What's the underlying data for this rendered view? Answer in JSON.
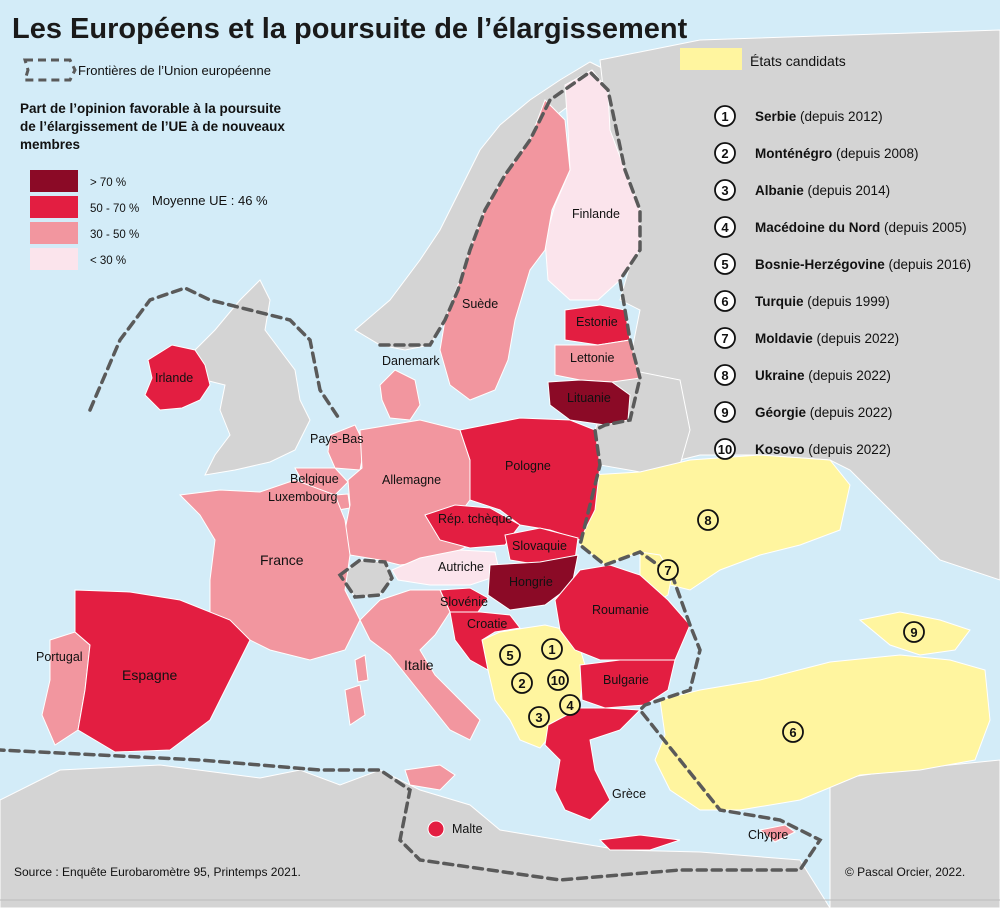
{
  "title": "Les Européens et la poursuite de l’élargissement",
  "legend": {
    "border_label": "Frontières de l’Union européenne",
    "choropleth_title": [
      "Part de l’opinion favorable à la poursuite",
      "de l’élargissement de l’UE à de nouveaux",
      "membres"
    ],
    "classes": [
      {
        "label": "> 70 %",
        "color": "#8b0a26"
      },
      {
        "label": "50 - 70 %",
        "color": "#e31e41"
      },
      {
        "label": "30 - 50 %",
        "color": "#f2969f"
      },
      {
        "label": "< 30 %",
        "color": "#fbe4ec"
      }
    ],
    "average_label": "Moyenne UE : 46 %",
    "candidates_label": "États candidats",
    "candidates_color": "#fff59f"
  },
  "candidates": [
    {
      "num": "1",
      "name": "Serbie",
      "since": "(depuis 2012)"
    },
    {
      "num": "2",
      "name": "Monténégro",
      "since": "(depuis 2008)"
    },
    {
      "num": "3",
      "name": "Albanie",
      "since": "(depuis 2014)"
    },
    {
      "num": "4",
      "name": "Macédoine du Nord",
      "since": "(depuis 2005)"
    },
    {
      "num": "5",
      "name": "Bosnie-Herzégovine",
      "since": "(depuis 2016)"
    },
    {
      "num": "6",
      "name": "Turquie",
      "since": "(depuis 1999)"
    },
    {
      "num": "7",
      "name": "Moldavie",
      "since": "(depuis 2022)"
    },
    {
      "num": "8",
      "name": "Ukraine",
      "since": "(depuis 2022)"
    },
    {
      "num": "9",
      "name": "Géorgie",
      "since": "(depuis 2022)"
    },
    {
      "num": "10",
      "name": "Kosovo",
      "since": "(depuis 2022)"
    }
  ],
  "country_labels": {
    "finlande": "Finlande",
    "suede": "Suède",
    "estonie": "Estonie",
    "lettonie": "Lettonie",
    "lituanie": "Lituanie",
    "danemark": "Danemark",
    "irlande": "Irlande",
    "pays_bas": "Pays-Bas",
    "belgique": "Belgique",
    "luxembourg": "Luxembourg",
    "allemagne": "Allemagne",
    "pologne": "Pologne",
    "rep_tcheque": "Rép. tchèque",
    "slovaquie": "Slovaquie",
    "autriche": "Autriche",
    "hongrie": "Hongrie",
    "slovenie": "Slovénie",
    "croatie": "Croatie",
    "roumanie": "Roumanie",
    "bulgarie": "Bulgarie",
    "france": "France",
    "portugal": "Portugal",
    "espagne": "Espagne",
    "italie": "Italie",
    "grece": "Grèce",
    "chypre": "Chypre",
    "malte": "Malte"
  },
  "source": "Source : Enquête Eurobaromètre 95, Printemps 2021.",
  "credit": "© Pascal Orcier, 2022."
}
